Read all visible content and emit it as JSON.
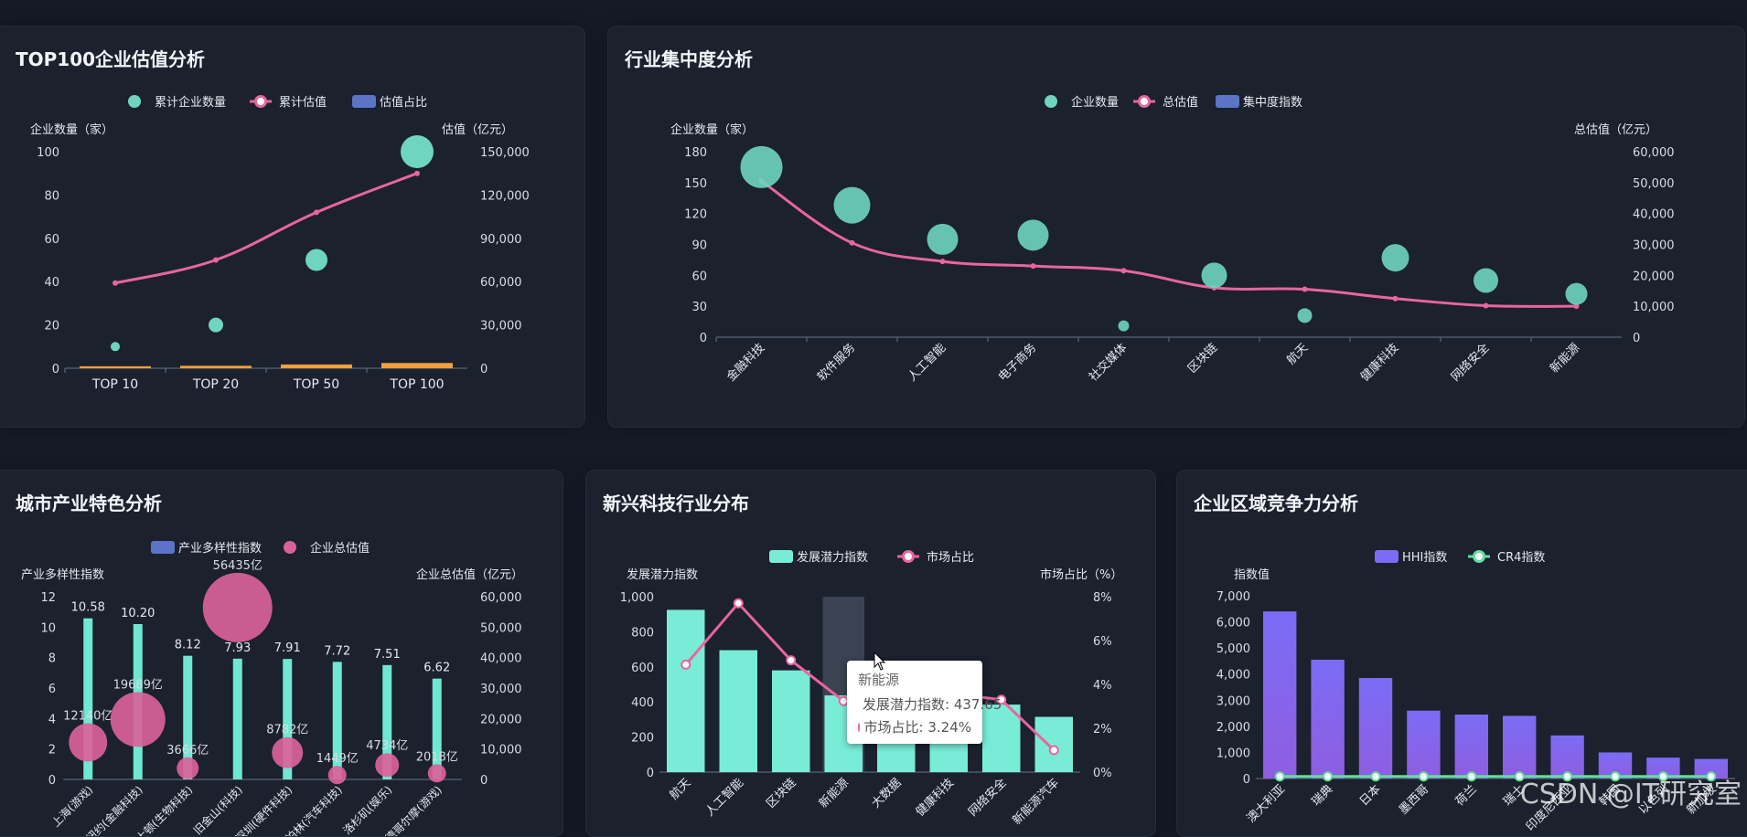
{
  "panels": {
    "top100": {
      "title": "TOP100企业估值分析"
    },
    "industry": {
      "title": "行业集中度分析"
    },
    "city": {
      "title": "城市产业特色分析"
    },
    "emerging": {
      "title": "新兴科技行业分布"
    },
    "region": {
      "title": "企业区域竞争力分析"
    }
  },
  "tooltip": {
    "title": "新能源",
    "row1": "发展潜力指数: 437.65",
    "row2": "市场占比: 3.24%"
  },
  "watermark": "CSDN @IT研究室",
  "chart_data": [
    {
      "id": "top100",
      "type": "bar",
      "legend": [
        "累计企业数量",
        "累计估值",
        "估值占比"
      ],
      "ylabel_left": "企业数量（家）",
      "ylabel_right": "估值（亿元）",
      "categories": [
        "TOP 10",
        "TOP 20",
        "TOP 50",
        "TOP 100"
      ],
      "left_ticks": [
        "0",
        "20",
        "40",
        "60",
        "80",
        "100"
      ],
      "right_ticks": [
        "0",
        "30,000",
        "60,000",
        "90,000",
        "120,000",
        "150,000"
      ],
      "ylim_left": [
        0,
        100
      ],
      "ylim_right": [
        0,
        150000
      ],
      "series": [
        {
          "name": "累计企业数量",
          "kind": "scatter",
          "values": [
            10,
            20,
            50,
            100
          ]
        },
        {
          "name": "累计估值",
          "kind": "line",
          "values": [
            59000,
            75000,
            108000,
            135000
          ]
        },
        {
          "name": "估值占比",
          "kind": "bar",
          "values": [
            1.2,
            1.5,
            2.3,
            3.2
          ]
        }
      ],
      "colors": {
        "scatter": "#6fd5bf",
        "line": "#e9659f",
        "bar": "#f0a040"
      }
    },
    {
      "id": "industry",
      "type": "scatter",
      "legend": [
        "企业数量",
        "总估值",
        "集中度指数"
      ],
      "ylabel_left": "企业数量（家）",
      "ylabel_right": "总估值（亿元）",
      "categories": [
        "金融科技",
        "软件服务",
        "人工智能",
        "电子商务",
        "社交媒体",
        "区块链",
        "航天",
        "健康科技",
        "网络安全",
        "新能源"
      ],
      "left_ticks": [
        "0",
        "30",
        "60",
        "90",
        "120",
        "150",
        "180"
      ],
      "right_ticks": [
        "0",
        "10,000",
        "20,000",
        "30,000",
        "40,000",
        "50,000",
        "60,000"
      ],
      "ylim_left": [
        0,
        180
      ],
      "ylim_right": [
        0,
        60000
      ],
      "series": [
        {
          "name": "企业数量",
          "kind": "scatter",
          "values": [
            165,
            128,
            95,
            99,
            11,
            60,
            21,
            77,
            55,
            42
          ],
          "sizes": [
            46,
            40,
            34,
            34,
            12,
            28,
            16,
            30,
            27,
            24
          ]
        },
        {
          "name": "总估值",
          "kind": "line",
          "values": [
            50500,
            30500,
            24500,
            23000,
            21500,
            16000,
            15500,
            12500,
            10200,
            10000
          ]
        }
      ],
      "colors": {
        "scatter": "#6fd5bf",
        "line": "#e9659f",
        "bar": "#5b74c7"
      }
    },
    {
      "id": "city",
      "type": "bar",
      "legend": [
        "产业多样性指数",
        "企业总估值"
      ],
      "ylabel_left": "产业多样性指数",
      "ylabel_right": "企业总估值（亿元）",
      "categories": [
        "上海(游戏)",
        "纽约(金融科技)",
        "波士顿(生物科技)",
        "旧金山(科技)",
        "深圳(硬件科技)",
        "柏林(汽车科技)",
        "洛杉矶(娱乐)",
        "斯德哥尔摩(游戏)"
      ],
      "left_ticks": [
        "0",
        "2",
        "4",
        "6",
        "8",
        "10",
        "12"
      ],
      "right_ticks": [
        "0",
        "10,000",
        "20,000",
        "30,000",
        "40,000",
        "50,000",
        "60,000"
      ],
      "ylim_left": [
        0,
        12
      ],
      "ylim_right": [
        0,
        60000
      ],
      "series": [
        {
          "name": "产业多样性指数",
          "kind": "bar",
          "values": [
            10.58,
            10.2,
            8.12,
            7.93,
            7.91,
            7.72,
            7.51,
            6.62
          ],
          "labels": [
            "10.58",
            "10.20",
            "8.12",
            "7.93",
            "7.91",
            "7.72",
            "7.51",
            "6.62"
          ]
        },
        {
          "name": "企业总估值",
          "kind": "bubble",
          "values": [
            12140,
            19689,
            3666,
            56435,
            8782,
            1449,
            4734,
            2018
          ],
          "labels": [
            "12140亿",
            "19689亿",
            "3666亿",
            "56435亿",
            "8782亿",
            "1449亿",
            "4734亿",
            "2018亿"
          ],
          "sizes": [
            42,
            60,
            24,
            76,
            34,
            20,
            26,
            20
          ]
        }
      ],
      "colors": {
        "bar": "#6fe8d3",
        "bubble": "#d9629a"
      }
    },
    {
      "id": "emerging",
      "type": "bar",
      "legend": [
        "发展潜力指数",
        "市场占比"
      ],
      "ylabel_left": "发展潜力指数",
      "ylabel_right": "市场占比（%）",
      "categories": [
        "航天",
        "人工智能",
        "区块链",
        "新能源",
        "大数据",
        "健康科技",
        "网络安全",
        "新能源汽车"
      ],
      "left_ticks": [
        "0",
        "200",
        "400",
        "600",
        "800",
        "1,000"
      ],
      "right_ticks": [
        "0%",
        "2%",
        "4%",
        "6%",
        "8%"
      ],
      "ylim_left": [
        0,
        1000
      ],
      "ylim_right": [
        0,
        8
      ],
      "series": [
        {
          "name": "发展潜力指数",
          "kind": "bar",
          "values": [
            925,
            695,
            580,
            437.65,
            410,
            395,
            385,
            315
          ]
        },
        {
          "name": "市场占比",
          "kind": "line",
          "values": [
            4.9,
            7.7,
            5.1,
            3.24,
            3.9,
            3.6,
            3.3,
            1.0
          ]
        }
      ],
      "highlight_index": 3,
      "colors": {
        "bar": "#79ecd8",
        "line": "#e9659f",
        "highlight": "#3b4353"
      }
    },
    {
      "id": "region",
      "type": "bar",
      "legend": [
        "HHI指数",
        "CR4指数"
      ],
      "ylabel_left": "指数值",
      "categories": [
        "澳大利亚",
        "瑞典",
        "日本",
        "墨西哥",
        "荷兰",
        "瑞士",
        "印度尼西亚",
        "韩国",
        "以色列",
        "新加坡"
      ],
      "left_ticks": [
        "0",
        "1,000",
        "2,000",
        "3,000",
        "4,000",
        "5,000",
        "6,000",
        "7,000"
      ],
      "ylim_left": [
        0,
        7000
      ],
      "series": [
        {
          "name": "HHI指数",
          "kind": "bar",
          "values": [
            6400,
            4550,
            3850,
            2600,
            2450,
            2400,
            1650,
            1000,
            800,
            750
          ]
        },
        {
          "name": "CR4指数",
          "kind": "line",
          "values": [
            80,
            80,
            80,
            80,
            80,
            80,
            80,
            80,
            80,
            80
          ]
        }
      ],
      "colors": {
        "bar_top": "#7b6cf6",
        "bar_bottom": "#8f5ee0",
        "line": "#5fe0a0"
      }
    }
  ]
}
